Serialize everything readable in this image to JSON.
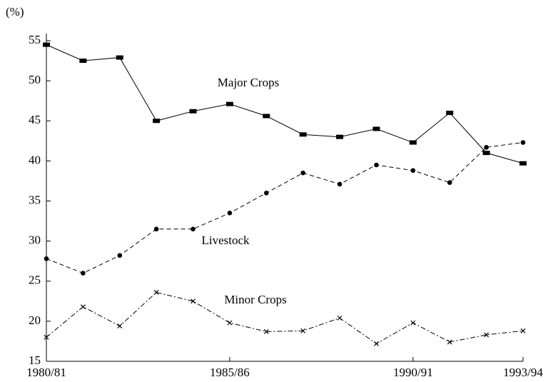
{
  "chart_data": {
    "type": "line",
    "y_label": "(%)",
    "categories": [
      "1980/81",
      null,
      null,
      null,
      null,
      "1985/86",
      null,
      null,
      null,
      null,
      "1990/91",
      null,
      null,
      "1993/94"
    ],
    "series": [
      {
        "name": "Major Crops",
        "color": "#000000",
        "marker": "square",
        "dash": "solid",
        "values": [
          54.5,
          52.5,
          52.9,
          45,
          46.2,
          47.1,
          45.6,
          43.3,
          43,
          44,
          42.3,
          46,
          41,
          39.7
        ]
      },
      {
        "name": "Livestock",
        "color": "#000000",
        "marker": "circle",
        "dash": "dashed",
        "values": [
          27.8,
          26,
          28.2,
          31.5,
          31.5,
          33.5,
          36,
          38.5,
          37.1,
          39.5,
          38.8,
          37.3,
          41.7,
          42.3
        ]
      },
      {
        "name": "Minor Crops",
        "color": "#000000",
        "marker": "x",
        "dash": "dashdot",
        "values": [
          18,
          21.8,
          19.4,
          23.6,
          22.5,
          19.8,
          18.7,
          18.8,
          20.4,
          17.2,
          19.8,
          17.4,
          18.3,
          18.8
        ]
      }
    ],
    "ylim": [
      15,
      55
    ],
    "yticks": [
      15,
      20,
      25,
      30,
      35,
      40,
      45,
      50,
      55
    ],
    "grid": false
  }
}
